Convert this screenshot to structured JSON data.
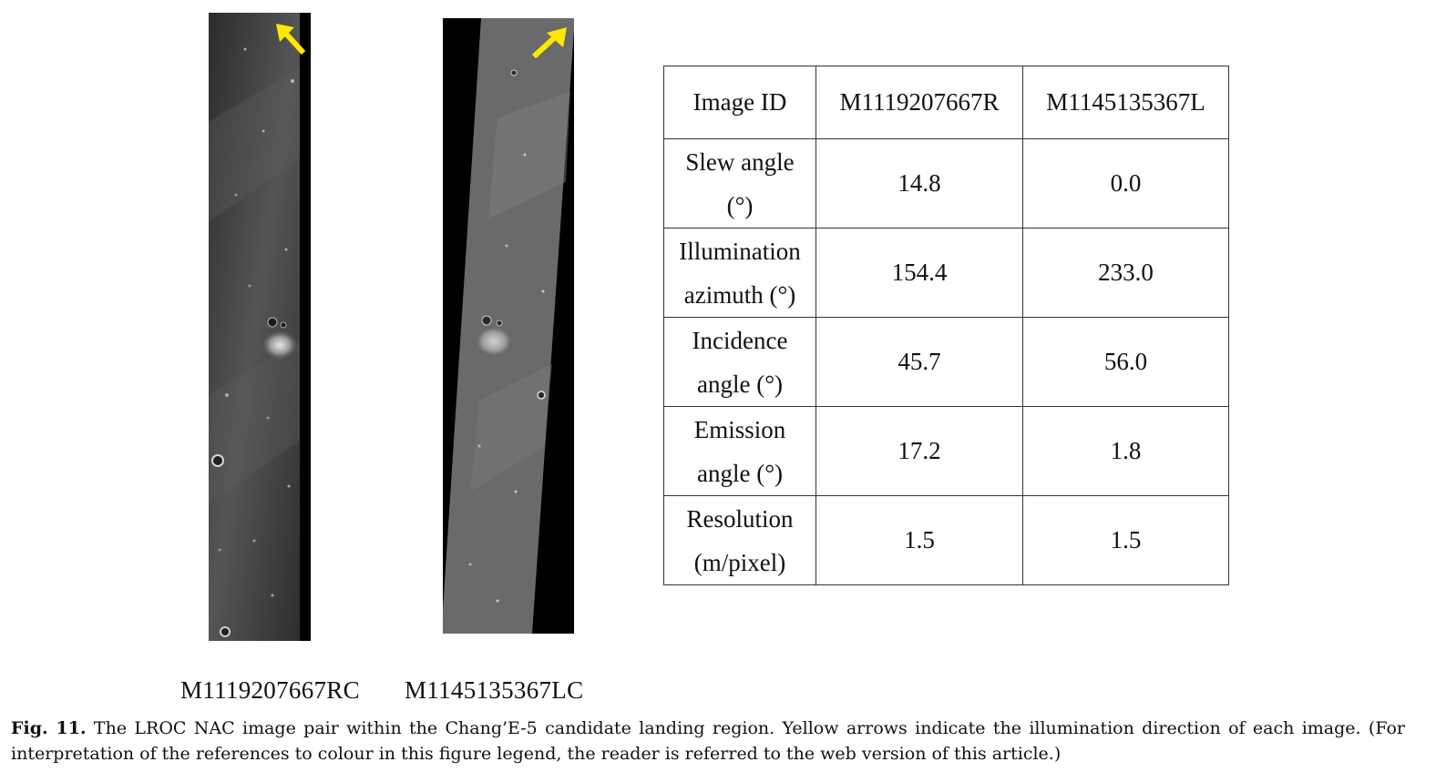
{
  "figure": {
    "images": [
      {
        "label": "M1119207667RC",
        "arrow_icon": "yellow-arrow-icon",
        "arrow_direction": "up-left"
      },
      {
        "label": "M1145135367LC",
        "arrow_icon": "yellow-arrow-icon",
        "arrow_direction": "up-right"
      }
    ],
    "arrow_color": "#FFE800",
    "table": {
      "header": [
        "Image ID",
        "M1119207667R",
        "M1145135367L"
      ],
      "rows": [
        {
          "label_line1": "Slew angle",
          "label_line2": "(°)",
          "v1": "14.8",
          "v2": "0.0"
        },
        {
          "label_line1": "Illumination",
          "label_line2": "azimuth (°)",
          "v1": "154.4",
          "v2": "233.0"
        },
        {
          "label_line1": "Incidence",
          "label_line2": "angle (°)",
          "v1": "45.7",
          "v2": "56.0"
        },
        {
          "label_line1": "Emission",
          "label_line2": "angle (°)",
          "v1": "17.2",
          "v2": "1.8"
        },
        {
          "label_line1": "Resolution",
          "label_line2": "(m/pixel)",
          "v1": "1.5",
          "v2": "1.5"
        }
      ]
    },
    "caption": {
      "label": "Fig. 11.",
      "text": "The LROC NAC image pair within the Chang’E-5 candidate landing region. Yellow arrows indicate the illumination direction of each image. (For interpretation of the references to colour in this figure legend, the reader is referred to the web version of this article.)"
    }
  }
}
